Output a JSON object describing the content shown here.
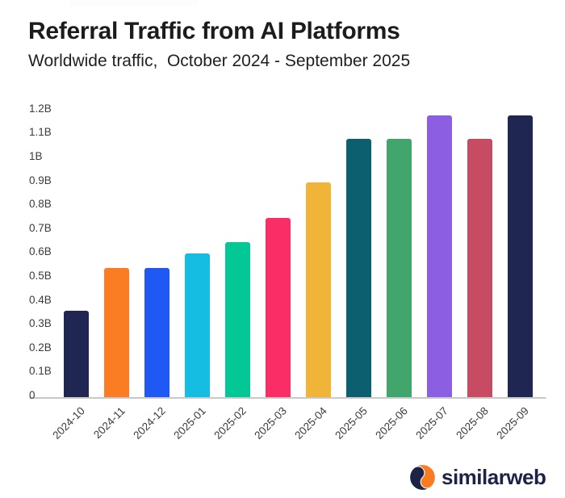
{
  "header": {
    "title": "Referral Traffic from AI Platforms",
    "subtitle": "Worldwide traffic,  October 2024 - September 2025"
  },
  "chart_data": {
    "type": "bar",
    "title": "Referral Traffic from AI Platforms",
    "subtitle": "Worldwide traffic, October 2024 - September 2025",
    "categories": [
      "2024-10",
      "2024-11",
      "2024-12",
      "2025-01",
      "2025-02",
      "2025-03",
      "2025-04",
      "2025-05",
      "2025-06",
      "2025-07",
      "2025-08",
      "2025-09"
    ],
    "values": [
      0.36,
      0.54,
      0.54,
      0.6,
      0.65,
      0.75,
      0.9,
      1.08,
      1.08,
      1.18,
      1.08,
      1.18
    ],
    "unit": "B",
    "xlabel": "",
    "ylabel": "",
    "ylim": [
      0,
      1.2
    ],
    "ytick_step": 0.1,
    "ytick_labels": [
      "0",
      "0.1B",
      "0.2B",
      "0.3B",
      "0.4B",
      "0.5B",
      "0.6B",
      "0.7B",
      "0.8B",
      "0.9B",
      "1B",
      "1.1B",
      "1.2B"
    ],
    "grid": false,
    "legend_position": "none",
    "bar_colors": [
      "#202652",
      "#fb7d23",
      "#1f58f2",
      "#16bde2",
      "#03c795",
      "#fb2d66",
      "#f0b438",
      "#0b5f6e",
      "#41a56c",
      "#8c5ee2",
      "#c64b63",
      "#202652"
    ],
    "axis_line_color": "#c9c9c9",
    "tick_label_color": "#3b3b3b"
  },
  "footer": {
    "brand": "similarweb",
    "brand_color": "#1e2247",
    "brand_accent": "#f97b22"
  }
}
